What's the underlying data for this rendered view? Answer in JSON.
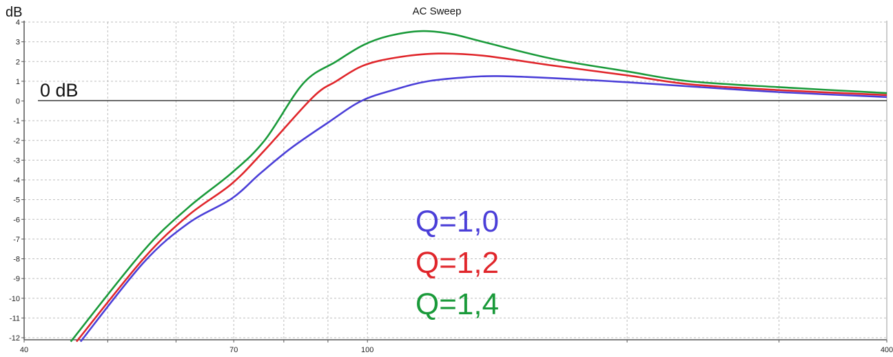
{
  "chart_data": {
    "type": "line",
    "title": "AC Sweep",
    "ylabel": "dB",
    "xlabel": "",
    "xscale": "log",
    "xlim": [
      40,
      400
    ],
    "ylim": [
      -12,
      4
    ],
    "grid": true,
    "x_tick_labels": [
      "40",
      "70",
      "100",
      "400"
    ],
    "x_grid_values": [
      40,
      50,
      60,
      70,
      80,
      90,
      100,
      200,
      300,
      400
    ],
    "y_ticks": [
      4,
      3,
      2,
      1,
      0,
      -1,
      -2,
      -3,
      -4,
      -5,
      -6,
      -7,
      -8,
      -9,
      -10,
      -11,
      -12
    ],
    "reference_line": {
      "label": "0 dB",
      "value": 0
    },
    "series": [
      {
        "name": "Q=1,0",
        "color": "#4b3fd8",
        "points": [
          [
            46.5,
            -12.2
          ],
          [
            55,
            -8.2
          ],
          [
            62,
            -6.2
          ],
          [
            69.6,
            -4.95
          ],
          [
            75,
            -3.7
          ],
          [
            81.5,
            -2.4
          ],
          [
            90,
            -1.1
          ],
          [
            98.4,
            0
          ],
          [
            108,
            0.6
          ],
          [
            117.5,
            1.0
          ],
          [
            130,
            1.2
          ],
          [
            141.6,
            1.26
          ],
          [
            163.7,
            1.16
          ],
          [
            200,
            0.95
          ],
          [
            236,
            0.74
          ],
          [
            300,
            0.45
          ],
          [
            400,
            0.2
          ]
        ]
      },
      {
        "name": "Q=1,2",
        "color": "#e0262b",
        "points": [
          [
            46,
            -12.2
          ],
          [
            55,
            -8.0
          ],
          [
            62,
            -5.8
          ],
          [
            69.6,
            -4.2
          ],
          [
            76,
            -2.5
          ],
          [
            86.5,
            0.2
          ],
          [
            92,
            1.0
          ],
          [
            99,
            1.8
          ],
          [
            108,
            2.2
          ],
          [
            119.8,
            2.4
          ],
          [
            136,
            2.3
          ],
          [
            163.7,
            1.8
          ],
          [
            200,
            1.3
          ],
          [
            236,
            0.85
          ],
          [
            300,
            0.55
          ],
          [
            400,
            0.3
          ]
        ]
      },
      {
        "name": "Q=1,4",
        "color": "#1a9a3a",
        "points": [
          [
            45.3,
            -12.2
          ],
          [
            55,
            -7.6
          ],
          [
            62,
            -5.4
          ],
          [
            69.6,
            -3.65
          ],
          [
            76,
            -2.0
          ],
          [
            84.3,
            0.9
          ],
          [
            92,
            2.0
          ],
          [
            99,
            2.84
          ],
          [
            106,
            3.3
          ],
          [
            115.4,
            3.54
          ],
          [
            125,
            3.4
          ],
          [
            136.1,
            3.0
          ],
          [
            163.7,
            2.14
          ],
          [
            200,
            1.5
          ],
          [
            236,
            1.0
          ],
          [
            300,
            0.7
          ],
          [
            400,
            0.4
          ]
        ]
      }
    ]
  }
}
